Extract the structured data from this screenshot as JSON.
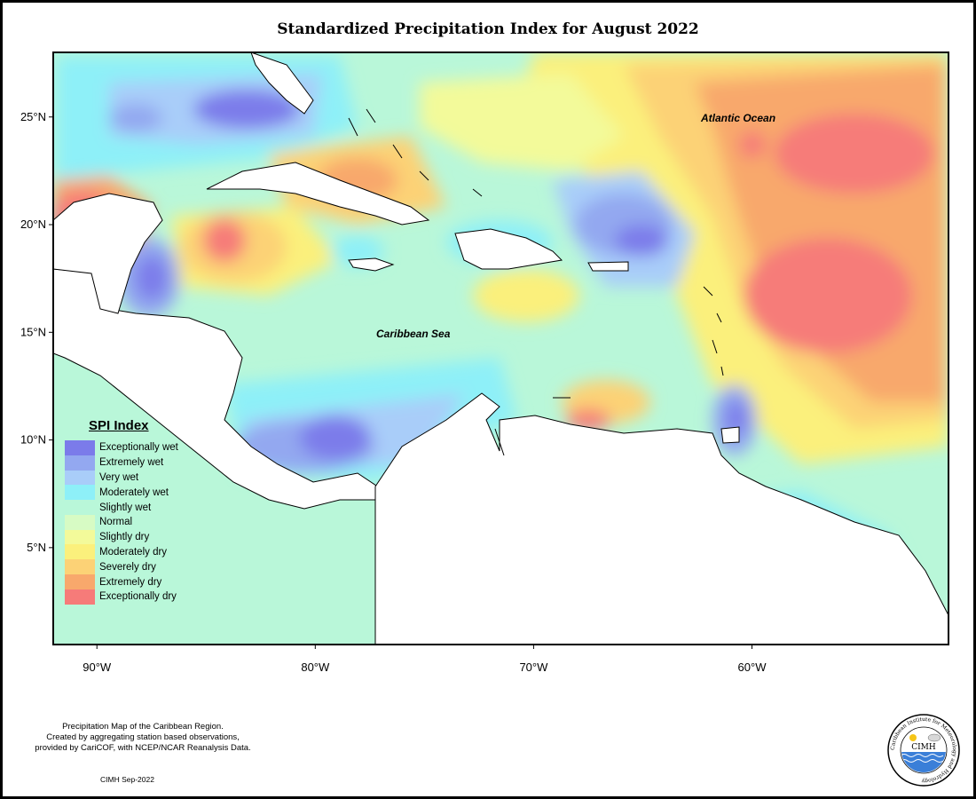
{
  "title": "Standardized Precipitation Index for August 2022",
  "map": {
    "lon_range": [
      -92,
      -51
    ],
    "lat_range": [
      0.5,
      28
    ],
    "lat_ticks": [
      {
        "value": 25,
        "label": "25°N"
      },
      {
        "value": 20,
        "label": "20°N"
      },
      {
        "value": 15,
        "label": "15°N"
      },
      {
        "value": 10,
        "label": "10°N"
      },
      {
        "value": 5,
        "label": "5°N"
      }
    ],
    "lon_ticks": [
      {
        "value": -90,
        "label": "90°W"
      },
      {
        "value": -80,
        "label": "80°W"
      },
      {
        "value": -70,
        "label": "70°W"
      },
      {
        "value": -60,
        "label": "60°W"
      }
    ],
    "labels": {
      "atlantic": "Atlantic Ocean",
      "caribbean": "Caribbean Sea"
    },
    "background_class": "Slightly wet"
  },
  "legend": {
    "title": "SPI Index",
    "items": [
      {
        "label": "Exceptionally wet",
        "color": "#7b7bea"
      },
      {
        "label": "Extremely wet",
        "color": "#93a8f0"
      },
      {
        "label": "Very wet",
        "color": "#a9cdf9"
      },
      {
        "label": "Moderately wet",
        "color": "#8ef0f8"
      },
      {
        "label": "Slightly wet",
        "color": "#b9f7d9"
      },
      {
        "label": "Normal",
        "color": "#d7fbc4"
      },
      {
        "label": "Slightly dry",
        "color": "#f3fa9a"
      },
      {
        "label": "Moderately dry",
        "color": "#fbf07c"
      },
      {
        "label": "Severely dry",
        "color": "#fcd276"
      },
      {
        "label": "Extremely dry",
        "color": "#f8a86c"
      },
      {
        "label": "Exceptionally dry",
        "color": "#f67b79"
      }
    ]
  },
  "footnote": {
    "lines": [
      "Precipitation Map of the Caribbean Region.",
      "Created by aggregating station based observations,",
      "provided by CariCOF, with NCEP/NCAR Reanalysis Data."
    ],
    "credit": "CIMH Sep-2022"
  },
  "logo": {
    "name": "CIMH",
    "ring_text": "Caribbean Institute for Meteorology and Hydrology"
  }
}
